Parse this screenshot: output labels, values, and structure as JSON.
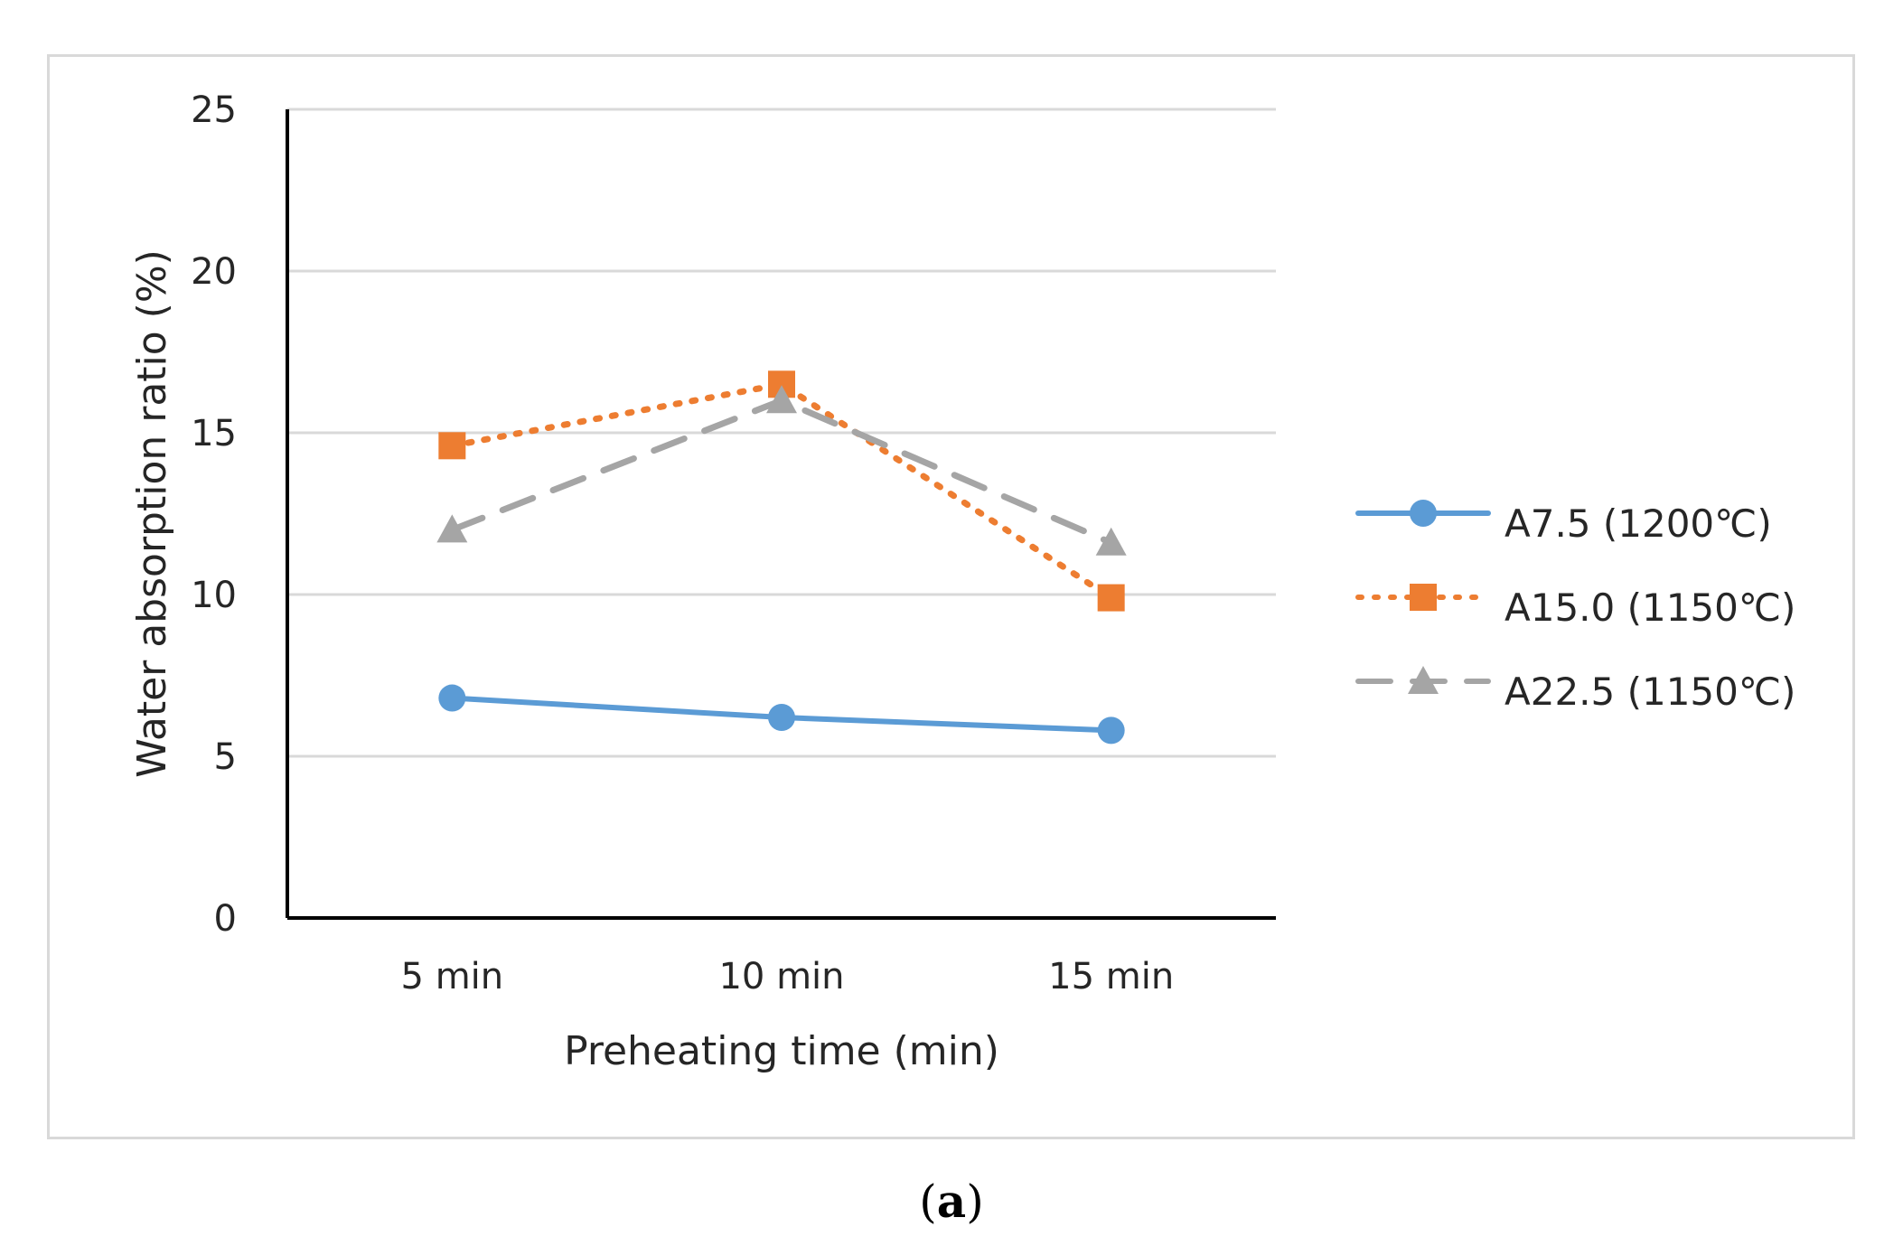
{
  "chart_data": {
    "type": "line",
    "categories": [
      "5 min",
      "10 min",
      "15 min"
    ],
    "series": [
      {
        "name": "A7.5 (1200℃)",
        "values": [
          6.8,
          6.2,
          5.8
        ],
        "color": "#5B9BD5",
        "style": "solid",
        "marker": "circle"
      },
      {
        "name": "A15.0 (1150℃)",
        "values": [
          14.6,
          16.5,
          9.9
        ],
        "color": "#ED7D31",
        "style": "dotted",
        "marker": "square"
      },
      {
        "name": "A22.5 (1150℃)",
        "values": [
          12.0,
          16.0,
          11.6
        ],
        "color": "#A5A5A5",
        "style": "dashed",
        "marker": "triangle"
      }
    ],
    "title": "",
    "xlabel": "Preheating time (min)",
    "ylabel": "Water absorption ratio  (%)",
    "ylim": [
      0,
      25
    ],
    "yticks": [
      0,
      5,
      10,
      15,
      20,
      25
    ],
    "grid": true,
    "legend": "right"
  },
  "caption": {
    "open": "(",
    "letter": "a",
    "close": ")"
  }
}
